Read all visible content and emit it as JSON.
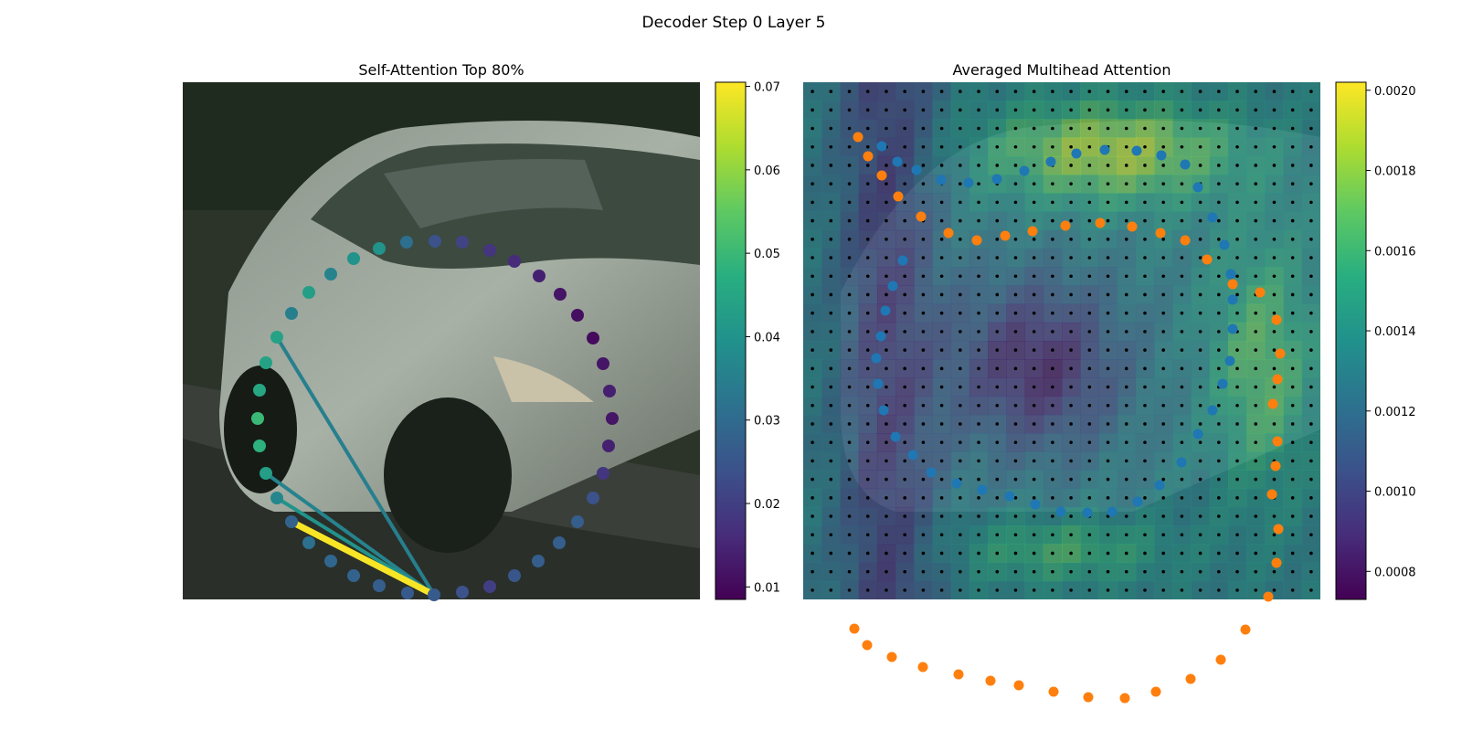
{
  "figure": {
    "suptitle": "Decoder Step 0 Layer 5"
  },
  "chart_data": [
    {
      "type": "scatter",
      "panel": "left",
      "title": "Self-Attention Top 80%",
      "background": "photo of a silver car (front-left view) on a road",
      "colormap": "viridis",
      "colorbar": {
        "ticks": [
          "0.01",
          "0.02",
          "0.03",
          "0.04",
          "0.05",
          "0.06",
          "0.07"
        ],
        "range": [
          0.0085,
          0.0705
        ]
      },
      "query_point_index": 33,
      "points": [
        {
          "x": 276,
          "y": 174,
          "v": 0.024
        },
        {
          "x": 306,
          "y": 175,
          "v": 0.021
        },
        {
          "x": 336,
          "y": 184,
          "v": 0.018
        },
        {
          "x": 363,
          "y": 196,
          "v": 0.016
        },
        {
          "x": 390,
          "y": 212,
          "v": 0.014
        },
        {
          "x": 413,
          "y": 232,
          "v": 0.012
        },
        {
          "x": 432,
          "y": 255,
          "v": 0.011
        },
        {
          "x": 449,
          "y": 280,
          "v": 0.01
        },
        {
          "x": 460,
          "y": 308,
          "v": 0.012
        },
        {
          "x": 467,
          "y": 338,
          "v": 0.014
        },
        {
          "x": 470,
          "y": 368,
          "v": 0.012
        },
        {
          "x": 466,
          "y": 398,
          "v": 0.014
        },
        {
          "x": 460,
          "y": 428,
          "v": 0.018
        },
        {
          "x": 449,
          "y": 455,
          "v": 0.024
        },
        {
          "x": 432,
          "y": 481,
          "v": 0.027
        },
        {
          "x": 412,
          "y": 504,
          "v": 0.027
        },
        {
          "x": 389,
          "y": 524,
          "v": 0.027
        },
        {
          "x": 363,
          "y": 540,
          "v": 0.025
        },
        {
          "x": 336,
          "y": 552,
          "v": 0.02
        },
        {
          "x": 306,
          "y": 558,
          "v": 0.024
        },
        {
          "x": 275,
          "y": 561,
          "v": 0.026
        },
        {
          "x": 246,
          "y": 559,
          "v": 0.026
        },
        {
          "x": 215,
          "y": 551,
          "v": 0.027
        },
        {
          "x": 187,
          "y": 540,
          "v": 0.028
        },
        {
          "x": 162,
          "y": 524,
          "v": 0.029
        },
        {
          "x": 138,
          "y": 504,
          "v": 0.031
        },
        {
          "x": 119,
          "y": 481,
          "v": 0.028
        },
        {
          "x": 103,
          "y": 455,
          "v": 0.037
        },
        {
          "x": 91,
          "y": 428,
          "v": 0.043
        },
        {
          "x": 84,
          "y": 398,
          "v": 0.048
        },
        {
          "x": 82,
          "y": 368,
          "v": 0.05
        },
        {
          "x": 84,
          "y": 337,
          "v": 0.045
        },
        {
          "x": 91,
          "y": 307,
          "v": 0.044
        },
        {
          "x": 103,
          "y": 279,
          "v": 0.044
        },
        {
          "x": 119,
          "y": 253,
          "v": 0.035
        },
        {
          "x": 138,
          "y": 230,
          "v": 0.043
        },
        {
          "x": 162,
          "y": 210,
          "v": 0.036
        },
        {
          "x": 187,
          "y": 193,
          "v": 0.04
        },
        {
          "x": 215,
          "y": 182,
          "v": 0.04
        },
        {
          "x": 245,
          "y": 175,
          "v": 0.031
        }
      ],
      "edges": [
        {
          "to": 33,
          "w": 0.035
        },
        {
          "to": 26,
          "w": 0.04
        },
        {
          "to": 27,
          "w": 0.04
        },
        {
          "to": 26,
          "w": 0.07
        },
        {
          "to": 28,
          "w": 0.036
        }
      ],
      "edge_source_index": 20
    },
    {
      "type": "heatmap",
      "panel": "right",
      "title": "Averaged Multihead Attention",
      "background": "photo of a silver car, overlaid with attention heatmap",
      "colormap": "viridis",
      "colorbar": {
        "ticks": [
          "0.0008",
          "0.0010",
          "0.0012",
          "0.0014",
          "0.0016",
          "0.0018",
          "0.0020"
        ],
        "range": [
          0.00073,
          0.00202
        ]
      },
      "grid_size": 28,
      "blue_points_desc": "inner ring of predicted points (blue)",
      "orange_points_desc": "outer ring of predicted points (orange)",
      "blue_points": [
        [
          86,
          160
        ],
        [
          103,
          177
        ],
        [
          124,
          186
        ],
        [
          151,
          197
        ],
        [
          181,
          200
        ],
        [
          212,
          196
        ],
        [
          242,
          187
        ],
        [
          271,
          177
        ],
        [
          299,
          168
        ],
        [
          330,
          164
        ],
        [
          365,
          165
        ],
        [
          392,
          170
        ],
        [
          418,
          180
        ],
        [
          432,
          205
        ],
        [
          448,
          238
        ],
        [
          461,
          268
        ],
        [
          468,
          300
        ],
        [
          470,
          328
        ],
        [
          470,
          360
        ],
        [
          467,
          395
        ],
        [
          459,
          420
        ],
        [
          448,
          449
        ],
        [
          432,
          475
        ],
        [
          414,
          506
        ],
        [
          390,
          531
        ],
        [
          366,
          549
        ],
        [
          338,
          560
        ],
        [
          311,
          561
        ],
        [
          282,
          560
        ],
        [
          254,
          552
        ],
        [
          226,
          543
        ],
        [
          196,
          536
        ],
        [
          168,
          529
        ],
        [
          140,
          517
        ],
        [
          120,
          498
        ],
        [
          101,
          478
        ],
        [
          88,
          449
        ],
        [
          82,
          420
        ],
        [
          80,
          392
        ],
        [
          85,
          368
        ],
        [
          90,
          340
        ],
        [
          98,
          313
        ],
        [
          109,
          285
        ]
      ],
      "orange_points": [
        [
          60,
          150
        ],
        [
          71,
          171
        ],
        [
          86,
          192
        ],
        [
          104,
          215
        ],
        [
          129,
          237
        ],
        [
          159,
          255
        ],
        [
          190,
          263
        ],
        [
          221,
          258
        ],
        [
          251,
          253
        ],
        [
          287,
          247
        ],
        [
          325,
          244
        ],
        [
          360,
          248
        ],
        [
          391,
          255
        ],
        [
          418,
          263
        ],
        [
          442,
          284
        ],
        [
          470,
          311
        ],
        [
          500,
          320
        ],
        [
          518,
          350
        ],
        [
          522,
          387
        ],
        [
          519,
          415
        ],
        [
          514,
          442
        ],
        [
          519,
          483
        ],
        [
          517,
          510
        ],
        [
          513,
          541
        ],
        [
          520,
          579
        ],
        [
          518,
          616
        ],
        [
          509,
          653
        ],
        [
          484,
          689
        ],
        [
          457,
          722
        ],
        [
          424,
          743
        ],
        [
          386,
          757
        ],
        [
          352,
          764
        ],
        [
          312,
          763
        ],
        [
          274,
          757
        ],
        [
          236,
          750
        ],
        [
          205,
          745
        ],
        [
          170,
          738
        ],
        [
          131,
          730
        ],
        [
          97,
          719
        ],
        [
          70,
          706
        ],
        [
          56,
          688
        ]
      ]
    }
  ]
}
